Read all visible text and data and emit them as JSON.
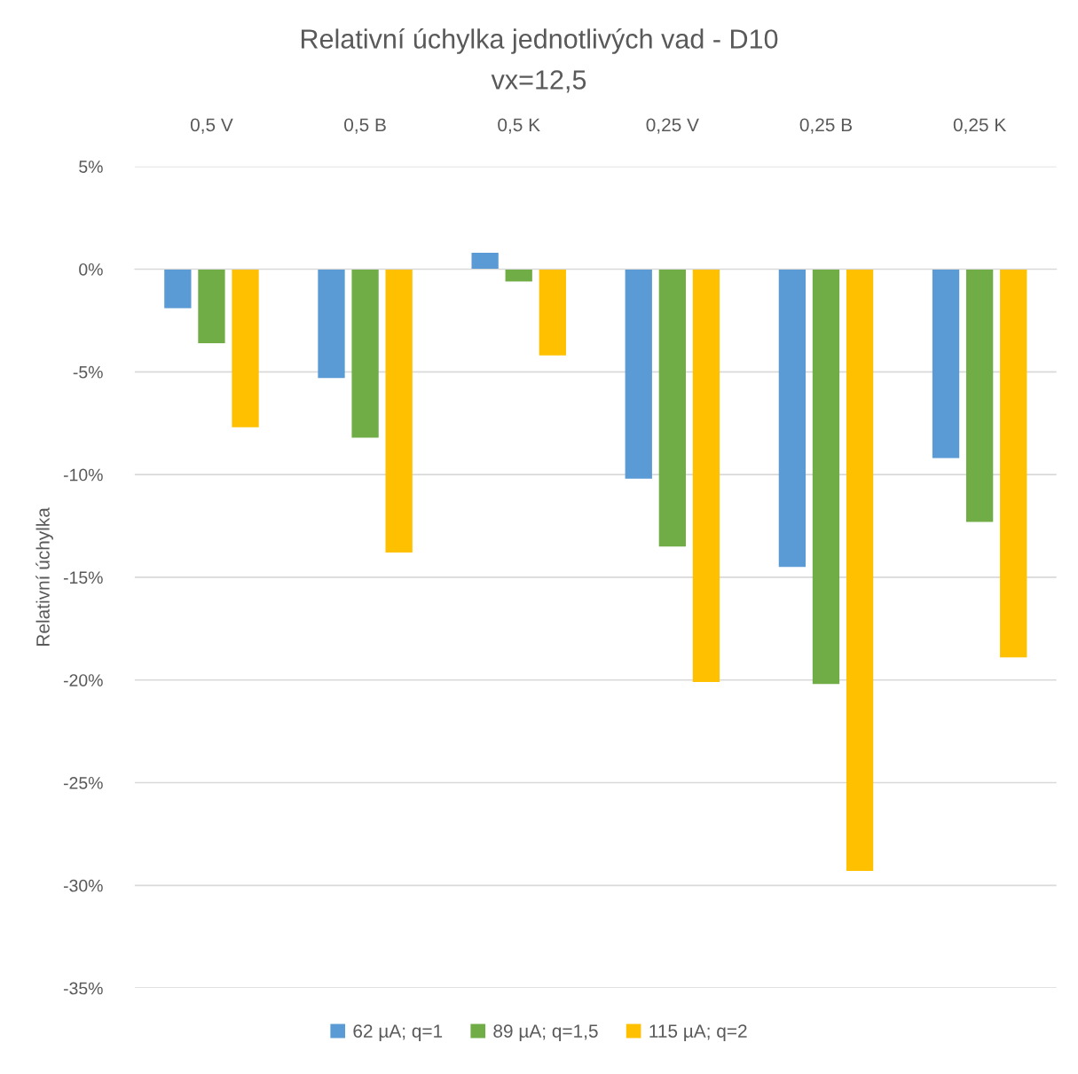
{
  "chart_data": {
    "type": "bar",
    "title": "Relativní úchylka jednotlivých vad - D10",
    "subtitle": "vx=12,5",
    "ylabel": "Relativní úchylka",
    "categories": [
      "0,5 V",
      "0,5 B",
      "0,5 K",
      "0,25 V",
      "0,25 B",
      "0,25 K"
    ],
    "series": [
      {
        "name": "62 µA; q=1",
        "color": "#5b9bd5",
        "values": [
          -1.9,
          -5.3,
          0.8,
          -10.2,
          -14.5,
          -9.2
        ]
      },
      {
        "name": "89 µA; q=1,5",
        "color": "#70ad47",
        "values": [
          -3.6,
          -8.2,
          -0.6,
          -13.5,
          -20.2,
          -12.3
        ]
      },
      {
        "name": "115 µA; q=2",
        "color": "#ffc000",
        "values": [
          -7.7,
          -13.8,
          -4.2,
          -20.1,
          -29.3,
          -18.9
        ]
      }
    ],
    "ylim": [
      -35,
      5
    ],
    "yticks": [
      {
        "value": -35,
        "label": "-35%"
      },
      {
        "value": -30,
        "label": "-30%"
      },
      {
        "value": -25,
        "label": "-25%"
      },
      {
        "value": -20,
        "label": "-20%"
      },
      {
        "value": -15,
        "label": "-15%"
      },
      {
        "value": -10,
        "label": "-10%"
      },
      {
        "value": -5,
        "label": "-5%"
      },
      {
        "value": 0,
        "label": "0%"
      },
      {
        "value": 5,
        "label": "5%"
      }
    ],
    "grid": "y",
    "legend": "bottom"
  }
}
